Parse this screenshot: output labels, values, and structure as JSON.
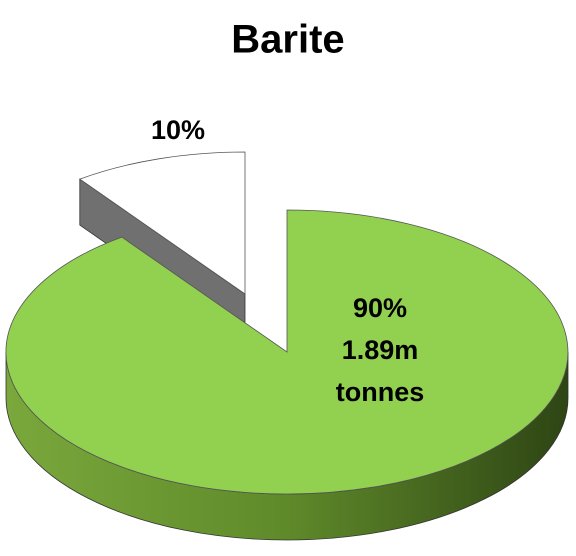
{
  "chart_data": {
    "type": "pie",
    "title": "Barite",
    "values": [
      90,
      10
    ],
    "value_labels": [
      "90%",
      "10%"
    ],
    "colors": [
      "#92d050",
      "#ffffff"
    ],
    "annotation_lines": [
      "1.89m",
      "tonnes"
    ]
  }
}
